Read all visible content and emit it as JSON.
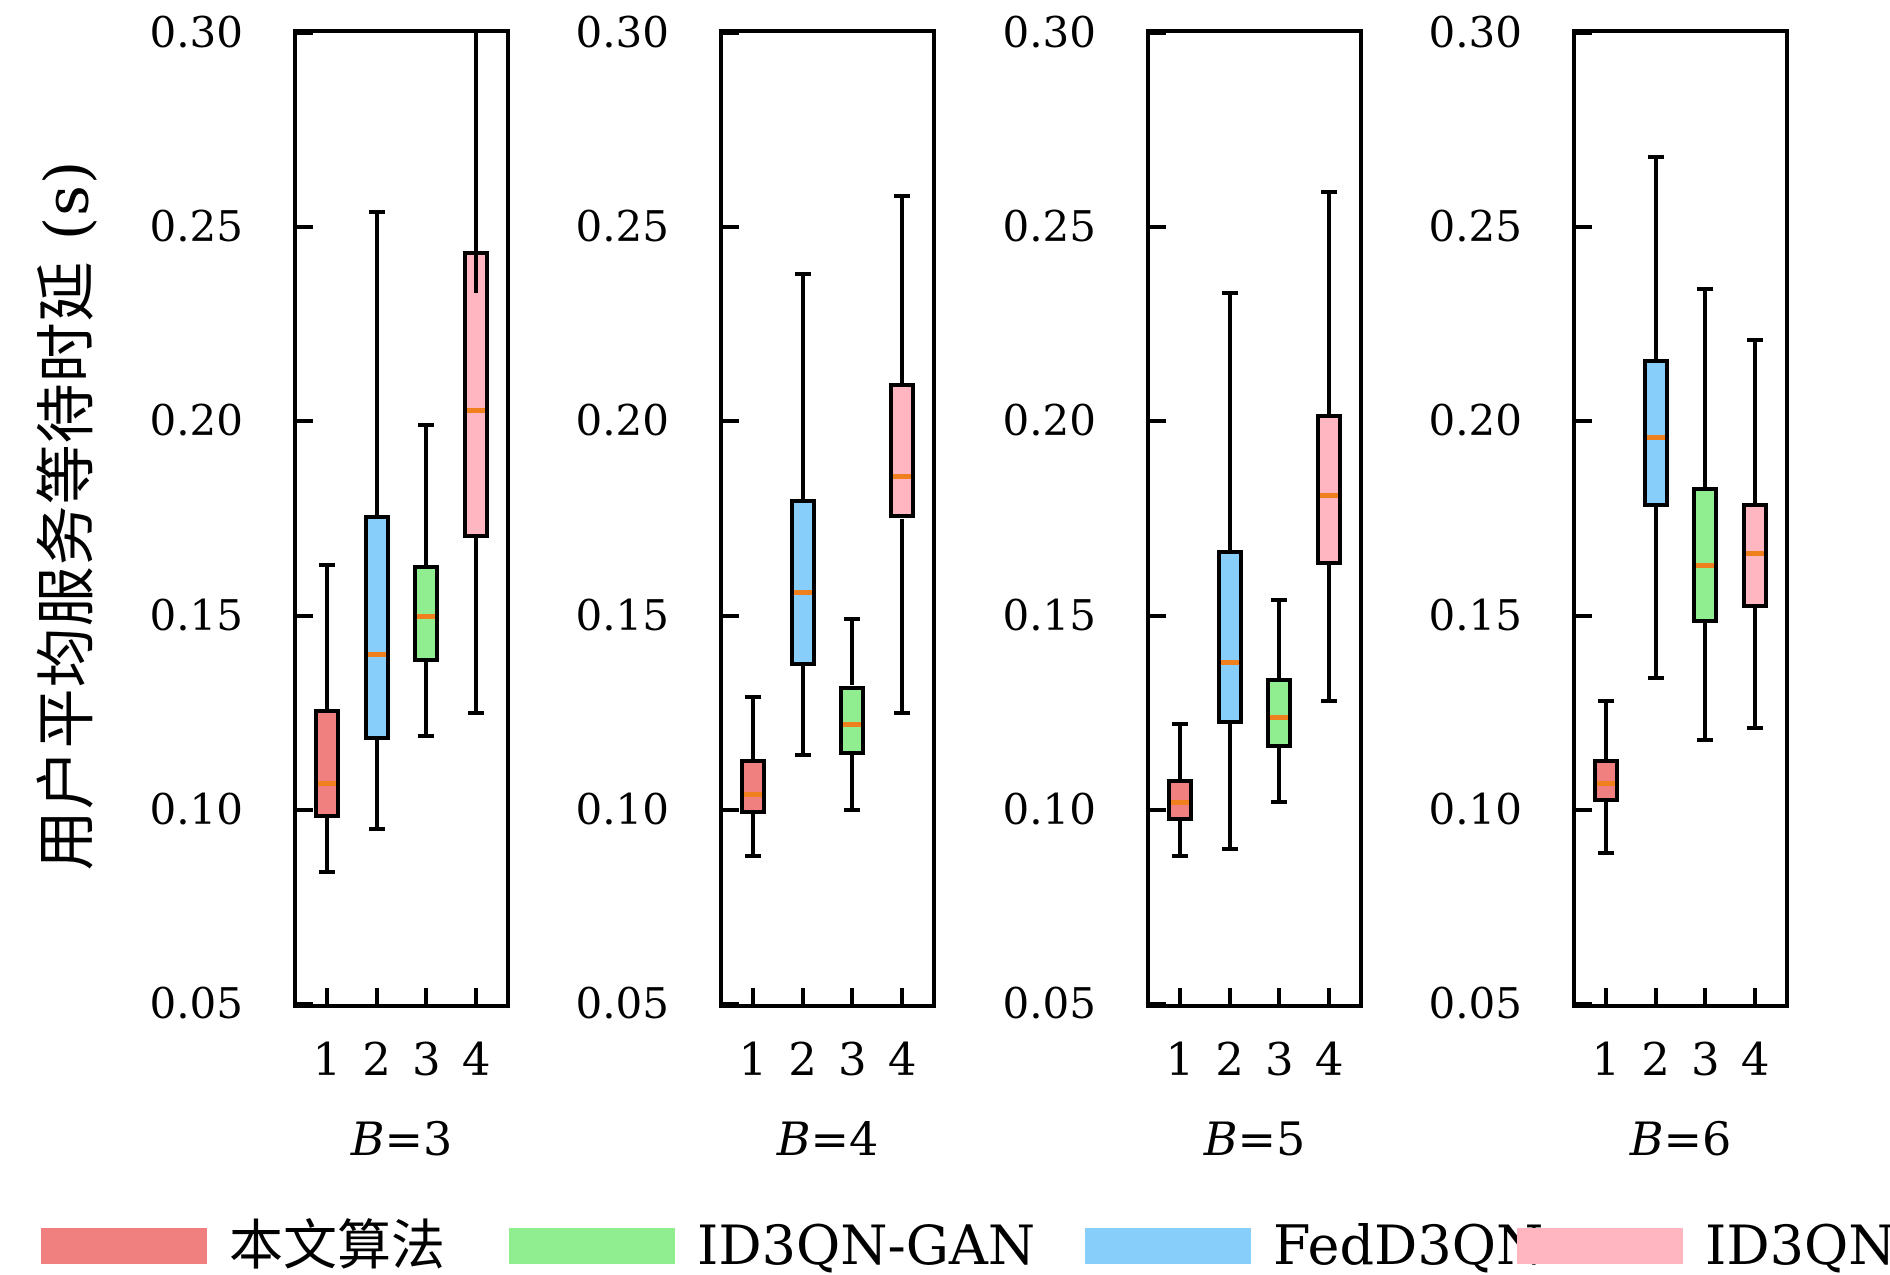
{
  "figure": {
    "ylabel": "用户平均服务等待时延 (s)",
    "background": "#FFFFFF",
    "line_color": "#000000",
    "median_color": "#F0801E"
  },
  "legend": [
    {
      "label": "本文算法",
      "color": "#F08080"
    },
    {
      "label": "ID3QN-GAN",
      "color": "#90EE90"
    },
    {
      "label": "FedD3QN",
      "color": "#87CEFA"
    },
    {
      "label": "ID3QN",
      "color": "#FFB6C1"
    }
  ],
  "chart_data": [
    {
      "type": "box",
      "title": "B=3",
      "x_ticks": [
        "1",
        "2",
        "3",
        "4"
      ],
      "y_tick_labels": [
        "0.30",
        "0.25",
        "0.20",
        "0.15",
        "0.10",
        "0.05"
      ],
      "y_tick_values": [
        0.3,
        0.25,
        0.2,
        0.15,
        0.1,
        0.05
      ],
      "ylim": [
        0.05,
        0.3
      ],
      "boxes": [
        {
          "x": "1",
          "series": "本文算法",
          "color": "#F08080",
          "whislo": 0.084,
          "q1": 0.098,
          "med": 0.107,
          "q3": 0.126,
          "whishi": 0.163
        },
        {
          "x": "2",
          "series": "FedD3QN",
          "color": "#87CEFA",
          "whislo": 0.095,
          "q1": 0.118,
          "med": 0.14,
          "q3": 0.176,
          "whishi": 0.254
        },
        {
          "x": "3",
          "series": "ID3QN-GAN",
          "color": "#90EE90",
          "whislo": 0.119,
          "q1": 0.138,
          "med": 0.15,
          "q3": 0.163,
          "whishi": 0.199
        },
        {
          "x": "4",
          "series": "ID3QN",
          "color": "#FFB6C1",
          "whislo": 0.125,
          "q1": 0.17,
          "med": 0.203,
          "q3": 0.244,
          "whishi": 0.315,
          "whishi_clipped": true,
          "top_whisker_from": 0.233
        }
      ]
    },
    {
      "type": "box",
      "title": "B=4",
      "x_ticks": [
        "1",
        "2",
        "3",
        "4"
      ],
      "y_tick_labels": [
        "0.30",
        "0.25",
        "0.20",
        "0.15",
        "0.10",
        "0.05"
      ],
      "y_tick_values": [
        0.3,
        0.25,
        0.2,
        0.15,
        0.1,
        0.05
      ],
      "ylim": [
        0.05,
        0.3
      ],
      "boxes": [
        {
          "x": "1",
          "series": "本文算法",
          "color": "#F08080",
          "whislo": 0.088,
          "q1": 0.099,
          "med": 0.104,
          "q3": 0.113,
          "whishi": 0.129
        },
        {
          "x": "2",
          "series": "FedD3QN",
          "color": "#87CEFA",
          "whislo": 0.114,
          "q1": 0.137,
          "med": 0.156,
          "q3": 0.18,
          "whishi": 0.238
        },
        {
          "x": "3",
          "series": "ID3QN-GAN",
          "color": "#90EE90",
          "whislo": 0.1,
          "q1": 0.114,
          "med": 0.122,
          "q3": 0.132,
          "whishi": 0.149
        },
        {
          "x": "4",
          "series": "ID3QN",
          "color": "#FFB6C1",
          "whislo": 0.125,
          "q1": 0.175,
          "med": 0.186,
          "q3": 0.21,
          "whishi": 0.258
        }
      ]
    },
    {
      "type": "box",
      "title": "B=5",
      "x_ticks": [
        "1",
        "2",
        "3",
        "4"
      ],
      "y_tick_labels": [
        "0.30",
        "0.25",
        "0.20",
        "0.15",
        "0.10",
        "0.05"
      ],
      "y_tick_values": [
        0.3,
        0.25,
        0.2,
        0.15,
        0.1,
        0.05
      ],
      "ylim": [
        0.05,
        0.3
      ],
      "boxes": [
        {
          "x": "1",
          "series": "本文算法",
          "color": "#F08080",
          "whislo": 0.088,
          "q1": 0.097,
          "med": 0.102,
          "q3": 0.108,
          "whishi": 0.122
        },
        {
          "x": "2",
          "series": "FedD3QN",
          "color": "#87CEFA",
          "whislo": 0.09,
          "q1": 0.122,
          "med": 0.138,
          "q3": 0.167,
          "whishi": 0.233
        },
        {
          "x": "3",
          "series": "ID3QN-GAN",
          "color": "#90EE90",
          "whislo": 0.102,
          "q1": 0.116,
          "med": 0.124,
          "q3": 0.134,
          "whishi": 0.154
        },
        {
          "x": "4",
          "series": "ID3QN",
          "color": "#FFB6C1",
          "whislo": 0.128,
          "q1": 0.163,
          "med": 0.181,
          "q3": 0.202,
          "whishi": 0.259
        }
      ]
    },
    {
      "type": "box",
      "title": "B=6",
      "x_ticks": [
        "1",
        "2",
        "3",
        "4"
      ],
      "y_tick_labels": [
        "0.30",
        "0.25",
        "0.20",
        "0.15",
        "0.10",
        "0.05"
      ],
      "y_tick_values": [
        0.3,
        0.25,
        0.2,
        0.15,
        0.1,
        0.05
      ],
      "ylim": [
        0.05,
        0.3
      ],
      "boxes": [
        {
          "x": "1",
          "series": "本文算法",
          "color": "#F08080",
          "whislo": 0.089,
          "q1": 0.102,
          "med": 0.107,
          "q3": 0.113,
          "whishi": 0.128
        },
        {
          "x": "2",
          "series": "FedD3QN",
          "color": "#87CEFA",
          "whislo": 0.134,
          "q1": 0.178,
          "med": 0.196,
          "q3": 0.216,
          "whishi": 0.268
        },
        {
          "x": "3",
          "series": "ID3QN-GAN",
          "color": "#90EE90",
          "whislo": 0.118,
          "q1": 0.148,
          "med": 0.163,
          "q3": 0.183,
          "whishi": 0.234
        },
        {
          "x": "4",
          "series": "ID3QN",
          "color": "#FFB6C1",
          "whislo": 0.121,
          "q1": 0.152,
          "med": 0.166,
          "q3": 0.179,
          "whishi": 0.221
        }
      ]
    }
  ]
}
